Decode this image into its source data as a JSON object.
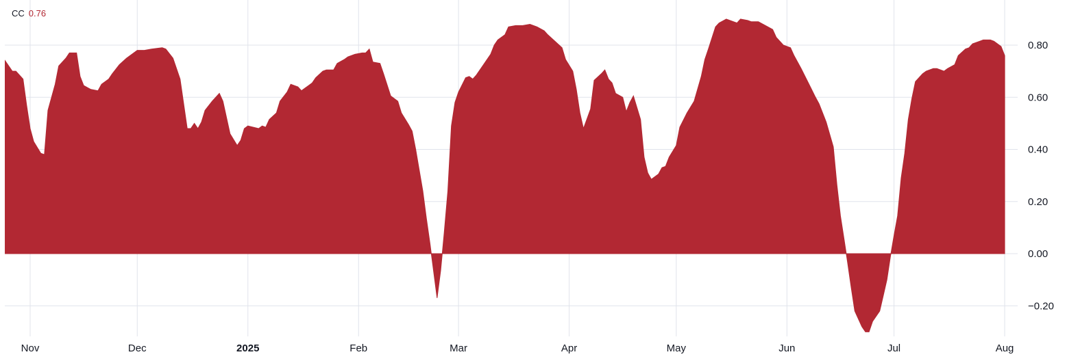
{
  "legend": {
    "symbol": "CC",
    "value": "0.76"
  },
  "colors": {
    "area": "#b22833",
    "legend_value": "#b22833",
    "grid": "#e0e3eb"
  },
  "chart_data": {
    "type": "area",
    "title": "",
    "xlabel": "",
    "ylabel": "",
    "ylim": [
      -0.3,
      0.97
    ],
    "xlim": [
      "2024-10-25",
      "2025-08-01"
    ],
    "grid": true,
    "baseline": 0,
    "yticks": [
      {
        "value": 0.8,
        "label": "0.80"
      },
      {
        "value": 0.6,
        "label": "0.60"
      },
      {
        "value": 0.4,
        "label": "0.40"
      },
      {
        "value": 0.2,
        "label": "0.20"
      },
      {
        "value": 0.0,
        "label": "0.00"
      },
      {
        "value": -0.2,
        "label": "−0.20"
      }
    ],
    "xticks": [
      {
        "date": "2024-11-01",
        "label": "Nov",
        "bold": false
      },
      {
        "date": "2024-12-01",
        "label": "Dec",
        "bold": false
      },
      {
        "date": "2025-01-01",
        "label": "2025",
        "bold": true
      },
      {
        "date": "2025-02-01",
        "label": "Feb",
        "bold": false
      },
      {
        "date": "2025-03-01",
        "label": "Mar",
        "bold": false
      },
      {
        "date": "2025-04-01",
        "label": "Apr",
        "bold": false
      },
      {
        "date": "2025-05-01",
        "label": "May",
        "bold": false
      },
      {
        "date": "2025-06-01",
        "label": "Jun",
        "bold": false
      },
      {
        "date": "2025-07-01",
        "label": "Jul",
        "bold": false
      },
      {
        "date": "2025-08-01",
        "label": "Aug",
        "bold": false
      }
    ],
    "series": [
      {
        "points": [
          [
            "2024-10-25",
            0.74
          ],
          [
            "2024-10-27",
            0.7
          ],
          [
            "2024-10-28",
            0.7
          ],
          [
            "2024-10-30",
            0.67
          ],
          [
            "2024-10-31",
            0.57
          ],
          [
            "2024-11-01",
            0.48
          ],
          [
            "2024-11-02",
            0.43
          ],
          [
            "2024-11-04",
            0.385
          ],
          [
            "2024-11-05",
            0.38
          ],
          [
            "2024-11-06",
            0.55
          ],
          [
            "2024-11-08",
            0.65
          ],
          [
            "2024-11-09",
            0.72
          ],
          [
            "2024-11-11",
            0.75
          ],
          [
            "2024-11-12",
            0.77
          ],
          [
            "2024-11-14",
            0.77
          ],
          [
            "2024-11-15",
            0.68
          ],
          [
            "2024-11-16",
            0.645
          ],
          [
            "2024-11-18",
            0.63
          ],
          [
            "2024-11-20",
            0.625
          ],
          [
            "2024-11-21",
            0.65
          ],
          [
            "2024-11-23",
            0.67
          ],
          [
            "2024-11-24",
            0.69
          ],
          [
            "2024-11-26",
            0.725
          ],
          [
            "2024-11-28",
            0.75
          ],
          [
            "2024-12-01",
            0.78
          ],
          [
            "2024-12-03",
            0.78
          ],
          [
            "2024-12-05",
            0.785
          ],
          [
            "2024-12-08",
            0.79
          ],
          [
            "2024-12-09",
            0.785
          ],
          [
            "2024-12-11",
            0.75
          ],
          [
            "2024-12-13",
            0.67
          ],
          [
            "2024-12-15",
            0.48
          ],
          [
            "2024-12-16",
            0.48
          ],
          [
            "2024-12-17",
            0.5
          ],
          [
            "2024-12-18",
            0.48
          ],
          [
            "2024-12-19",
            0.505
          ],
          [
            "2024-12-20",
            0.55
          ],
          [
            "2024-12-22",
            0.585
          ],
          [
            "2024-12-24",
            0.615
          ],
          [
            "2024-12-25",
            0.585
          ],
          [
            "2024-12-27",
            0.46
          ],
          [
            "2024-12-29",
            0.415
          ],
          [
            "2024-12-30",
            0.435
          ],
          [
            "2024-12-31",
            0.48
          ],
          [
            "2025-01-01",
            0.49
          ],
          [
            "2025-01-04",
            0.48
          ],
          [
            "2025-01-05",
            0.49
          ],
          [
            "2025-01-06",
            0.485
          ],
          [
            "2025-01-07",
            0.515
          ],
          [
            "2025-01-09",
            0.54
          ],
          [
            "2025-01-10",
            0.585
          ],
          [
            "2025-01-12",
            0.62
          ],
          [
            "2025-01-13",
            0.65
          ],
          [
            "2025-01-15",
            0.64
          ],
          [
            "2025-01-16",
            0.625
          ],
          [
            "2025-01-18",
            0.645
          ],
          [
            "2025-01-19",
            0.655
          ],
          [
            "2025-01-20",
            0.675
          ],
          [
            "2025-01-22",
            0.7
          ],
          [
            "2025-01-23",
            0.705
          ],
          [
            "2025-01-25",
            0.705
          ],
          [
            "2025-01-26",
            0.73
          ],
          [
            "2025-01-28",
            0.745
          ],
          [
            "2025-01-29",
            0.755
          ],
          [
            "2025-01-31",
            0.765
          ],
          [
            "2025-02-02",
            0.77
          ],
          [
            "2025-02-03",
            0.77
          ],
          [
            "2025-02-04",
            0.785
          ],
          [
            "2025-02-05",
            0.735
          ],
          [
            "2025-02-07",
            0.73
          ],
          [
            "2025-02-08",
            0.69
          ],
          [
            "2025-02-10",
            0.605
          ],
          [
            "2025-02-12",
            0.585
          ],
          [
            "2025-02-13",
            0.54
          ],
          [
            "2025-02-15",
            0.495
          ],
          [
            "2025-02-16",
            0.47
          ],
          [
            "2025-02-17",
            0.4
          ],
          [
            "2025-02-18",
            0.32
          ],
          [
            "2025-02-19",
            0.24
          ],
          [
            "2025-02-20",
            0.135
          ],
          [
            "2025-02-21",
            0.04
          ],
          [
            "2025-02-23",
            -0.17
          ],
          [
            "2025-02-24",
            -0.065
          ],
          [
            "2025-02-25",
            0.08
          ],
          [
            "2025-02-26",
            0.24
          ],
          [
            "2025-02-27",
            0.49
          ],
          [
            "2025-02-28",
            0.58
          ],
          [
            "2025-03-01",
            0.62
          ],
          [
            "2025-03-03",
            0.675
          ],
          [
            "2025-03-04",
            0.68
          ],
          [
            "2025-03-05",
            0.67
          ],
          [
            "2025-03-06",
            0.685
          ],
          [
            "2025-03-08",
            0.725
          ],
          [
            "2025-03-10",
            0.765
          ],
          [
            "2025-03-11",
            0.8
          ],
          [
            "2025-03-12",
            0.82
          ],
          [
            "2025-03-14",
            0.84
          ],
          [
            "2025-03-15",
            0.87
          ],
          [
            "2025-03-17",
            0.875
          ],
          [
            "2025-03-19",
            0.875
          ],
          [
            "2025-03-21",
            0.88
          ],
          [
            "2025-03-23",
            0.87
          ],
          [
            "2025-03-25",
            0.855
          ],
          [
            "2025-03-26",
            0.84
          ],
          [
            "2025-03-28",
            0.815
          ],
          [
            "2025-03-30",
            0.79
          ],
          [
            "2025-03-31",
            0.745
          ],
          [
            "2025-04-02",
            0.7
          ],
          [
            "2025-04-03",
            0.63
          ],
          [
            "2025-04-04",
            0.54
          ],
          [
            "2025-04-05",
            0.48
          ],
          [
            "2025-04-07",
            0.555
          ],
          [
            "2025-04-08",
            0.665
          ],
          [
            "2025-04-10",
            0.69
          ],
          [
            "2025-04-11",
            0.705
          ],
          [
            "2025-04-12",
            0.67
          ],
          [
            "2025-04-13",
            0.655
          ],
          [
            "2025-04-14",
            0.615
          ],
          [
            "2025-04-16",
            0.6
          ],
          [
            "2025-04-17",
            0.545
          ],
          [
            "2025-04-18",
            0.58
          ],
          [
            "2025-04-19",
            0.605
          ],
          [
            "2025-04-21",
            0.515
          ],
          [
            "2025-04-22",
            0.37
          ],
          [
            "2025-04-23",
            0.31
          ],
          [
            "2025-04-24",
            0.285
          ],
          [
            "2025-04-26",
            0.305
          ],
          [
            "2025-04-27",
            0.33
          ],
          [
            "2025-04-28",
            0.335
          ],
          [
            "2025-04-29",
            0.37
          ],
          [
            "2025-05-01",
            0.415
          ],
          [
            "2025-05-02",
            0.485
          ],
          [
            "2025-05-04",
            0.54
          ],
          [
            "2025-05-06",
            0.585
          ],
          [
            "2025-05-08",
            0.68
          ],
          [
            "2025-05-09",
            0.745
          ],
          [
            "2025-05-10",
            0.785
          ],
          [
            "2025-05-12",
            0.87
          ],
          [
            "2025-05-13",
            0.885
          ],
          [
            "2025-05-15",
            0.9
          ],
          [
            "2025-05-17",
            0.89
          ],
          [
            "2025-05-18",
            0.885
          ],
          [
            "2025-05-19",
            0.9
          ],
          [
            "2025-05-21",
            0.895
          ],
          [
            "2025-05-22",
            0.89
          ],
          [
            "2025-05-24",
            0.89
          ],
          [
            "2025-05-26",
            0.875
          ],
          [
            "2025-05-28",
            0.86
          ],
          [
            "2025-05-29",
            0.83
          ],
          [
            "2025-05-31",
            0.8
          ],
          [
            "2025-06-02",
            0.79
          ],
          [
            "2025-06-03",
            0.76
          ],
          [
            "2025-06-05",
            0.71
          ],
          [
            "2025-06-07",
            0.655
          ],
          [
            "2025-06-09",
            0.6
          ],
          [
            "2025-06-10",
            0.575
          ],
          [
            "2025-06-12",
            0.505
          ],
          [
            "2025-06-14",
            0.41
          ],
          [
            "2025-06-15",
            0.265
          ],
          [
            "2025-06-16",
            0.145
          ],
          [
            "2025-06-17",
            0.055
          ],
          [
            "2025-06-18",
            -0.035
          ],
          [
            "2025-06-19",
            -0.13
          ],
          [
            "2025-06-20",
            -0.22
          ],
          [
            "2025-06-22",
            -0.28
          ],
          [
            "2025-06-23",
            -0.3
          ],
          [
            "2025-06-24",
            -0.3
          ],
          [
            "2025-06-25",
            -0.26
          ],
          [
            "2025-06-27",
            -0.22
          ],
          [
            "2025-06-28",
            -0.16
          ],
          [
            "2025-06-29",
            -0.1
          ],
          [
            "2025-06-30",
            -0.01
          ],
          [
            "2025-07-01",
            0.07
          ],
          [
            "2025-07-02",
            0.145
          ],
          [
            "2025-07-03",
            0.29
          ],
          [
            "2025-07-04",
            0.385
          ],
          [
            "2025-07-05",
            0.515
          ],
          [
            "2025-07-06",
            0.595
          ],
          [
            "2025-07-07",
            0.66
          ],
          [
            "2025-07-09",
            0.69
          ],
          [
            "2025-07-10",
            0.7
          ],
          [
            "2025-07-12",
            0.71
          ],
          [
            "2025-07-13",
            0.71
          ],
          [
            "2025-07-15",
            0.7
          ],
          [
            "2025-07-16",
            0.71
          ],
          [
            "2025-07-18",
            0.725
          ],
          [
            "2025-07-19",
            0.76
          ],
          [
            "2025-07-21",
            0.785
          ],
          [
            "2025-07-22",
            0.79
          ],
          [
            "2025-07-23",
            0.805
          ],
          [
            "2025-07-25",
            0.815
          ],
          [
            "2025-07-26",
            0.82
          ],
          [
            "2025-07-28",
            0.82
          ],
          [
            "2025-07-29",
            0.815
          ],
          [
            "2025-07-31",
            0.795
          ],
          [
            "2025-08-01",
            0.76
          ]
        ]
      }
    ]
  }
}
